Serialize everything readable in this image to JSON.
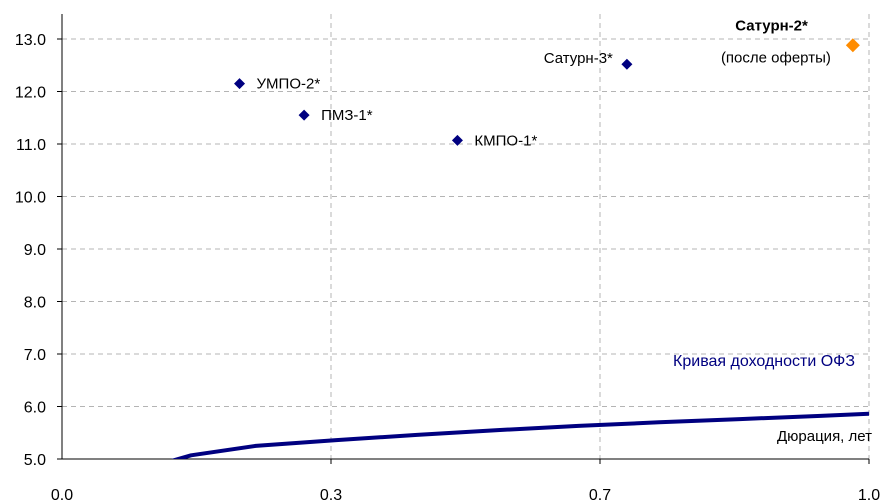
{
  "chart_data": {
    "type": "scatter",
    "xlim": [
      0.0,
      1.0
    ],
    "ylim": [
      5.0,
      13.0
    ],
    "x_ticks": [
      "0.0",
      "0.3",
      "0.7",
      "1.0"
    ],
    "y_ticks": [
      "13.0",
      "12.0",
      "11.0",
      "10.0",
      "9.0",
      "8.0",
      "7.0",
      "6.0",
      "5.0"
    ],
    "grid": true,
    "xlabel": "Дюрация, лет",
    "points": [
      {
        "label": "УМПО-2*",
        "x": 0.22,
        "y": 12.15,
        "color": "#000080",
        "bold": false
      },
      {
        "label": "ПМЗ-1*",
        "x": 0.3,
        "y": 11.55,
        "color": "#000080",
        "bold": false
      },
      {
        "label": "КМПО-1*",
        "x": 0.49,
        "y": 11.07,
        "color": "#000080",
        "bold": false
      },
      {
        "label": "Сатурн-3*",
        "x": 0.7,
        "y": 12.52,
        "color": "#000080",
        "bold": false
      },
      {
        "label": "Сатурн-2*",
        "sublabel": "(после оферты)",
        "x": 0.98,
        "y": 12.88,
        "color": "#FF8C00",
        "bold": true
      }
    ],
    "curve": {
      "name": "Кривая доходности ОФЗ",
      "color": "#000080",
      "x": [
        0.11,
        0.16,
        0.24,
        0.34,
        0.44,
        0.54,
        0.64,
        0.74,
        0.84,
        0.94,
        1.0
      ],
      "y": [
        4.85,
        5.07,
        5.25,
        5.36,
        5.46,
        5.55,
        5.63,
        5.7,
        5.76,
        5.82,
        5.86
      ]
    }
  }
}
